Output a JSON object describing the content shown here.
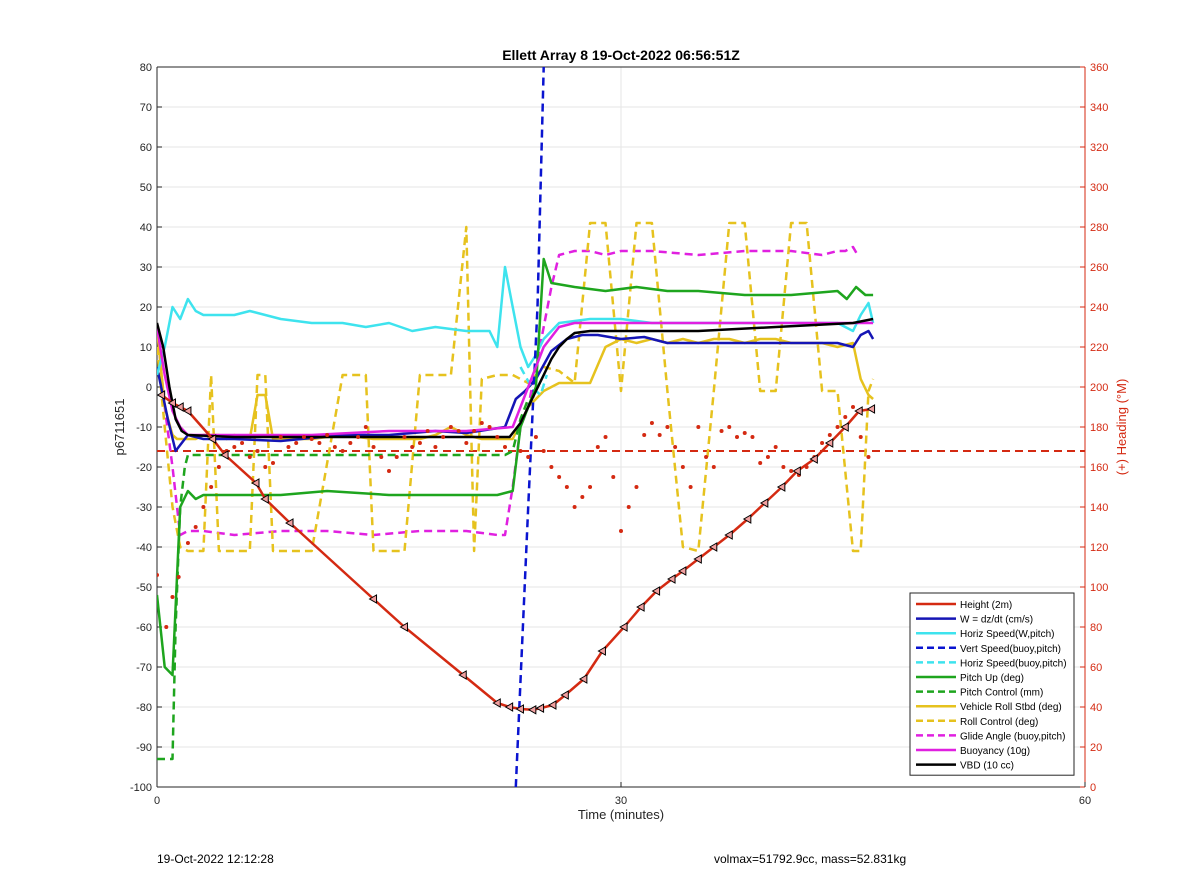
{
  "chart_data": {
    "type": "line",
    "title": "Ellett Array 8 19-Oct-2022 06:56:51Z",
    "xlabel": "Time (minutes)",
    "ylabel": "p6711651",
    "ylabel_right": "(+) Heading (°M)",
    "xlim": [
      0,
      60
    ],
    "ylim": [
      -100,
      80
    ],
    "ylim_right": [
      0,
      360
    ],
    "xticks": [
      "0",
      "30",
      "60"
    ],
    "yticks": [
      "80",
      "70",
      "60",
      "50",
      "40",
      "30",
      "20",
      "10",
      "0",
      "-10",
      "-20",
      "-30",
      "-40",
      "-50",
      "-60",
      "-70",
      "-80",
      "-90",
      "-100"
    ],
    "yticks_right": [
      "360",
      "340",
      "320",
      "300",
      "280",
      "260",
      "240",
      "220",
      "200",
      "180",
      "160",
      "140",
      "120",
      "100",
      "80",
      "60",
      "40",
      "20",
      "0"
    ],
    "grid": true,
    "legend_position": "bottom-right",
    "colors": {
      "height": "#d42a12",
      "w": "#1515b5",
      "horiz_w": "#3ee3ee",
      "vert_buoy": "#0a14d0",
      "horiz_buoy": "#3ee3ee",
      "pitch_up": "#1ea51e",
      "pitch_control": "#1ea51e",
      "roll": "#e6c21e",
      "roll_control": "#e6c21e",
      "glide": "#e020e0",
      "buoyancy": "#e020e0",
      "vbd": "#000000",
      "heading": "#d42a12",
      "right_axis": "#d42a12"
    },
    "series": [
      {
        "name": "Height (2m)",
        "style": "solid",
        "color_key": "height",
        "markers": "triangle",
        "x": [
          0.3,
          1.0,
          1.5,
          2.0,
          3.6,
          4.4,
          6.4,
          7.0,
          8.6,
          14.0,
          16.0,
          19.8,
          22.0,
          22.8,
          23.5,
          24.3,
          24.8,
          25.6,
          26.4,
          27.6,
          28.8,
          30.2,
          31.3,
          32.3,
          33.3,
          34.0,
          35.0,
          36.0,
          37.0,
          38.2,
          39.3,
          40.4,
          41.4,
          42.5,
          43.5,
          44.5,
          45.4,
          46.2
        ],
        "y": [
          -2,
          -4,
          -5,
          -6,
          -13,
          -17,
          -24,
          -28,
          -34,
          -53,
          -60,
          -72,
          -79,
          -80,
          -80.5,
          -80.7,
          -80.3,
          -79.5,
          -77,
          -73,
          -66,
          -60,
          -55,
          -51,
          -48,
          -46,
          -43,
          -40,
          -37,
          -33,
          -29,
          -25,
          -21,
          -18,
          -14,
          -10,
          -6,
          -5.5
        ]
      },
      {
        "name": "W = dz/dt (cm/s)",
        "style": "solid",
        "color_key": "w",
        "x": [
          0,
          0.7,
          1.2,
          2.0,
          3.0,
          5.0,
          8.0,
          12.0,
          15.0,
          18.0,
          20.0,
          22.5,
          23.2,
          23.8,
          24.5,
          25.5,
          26.5,
          27.5,
          28.5,
          30.0,
          31.5,
          33.0,
          35.0,
          38.0,
          40.0,
          42.0,
          44.0,
          45.0,
          45.5,
          46.0,
          46.3
        ],
        "y": [
          5,
          -8,
          -16,
          -12,
          -13,
          -13,
          -13.5,
          -12,
          -12,
          -11,
          -11.5,
          -10,
          -3,
          -1,
          2,
          9,
          12,
          13,
          13,
          12,
          12.5,
          11,
          11,
          11,
          11,
          11,
          11,
          10,
          13,
          14,
          12
        ]
      },
      {
        "name": "Horiz Speed(W,pitch)",
        "style": "solid",
        "color_key": "horiz_w",
        "x": [
          0,
          0.5,
          1.0,
          1.5,
          2.0,
          2.5,
          3.0,
          4.0,
          5.0,
          6.0,
          8.0,
          10.0,
          12.0,
          13.5,
          15.0,
          16.5,
          18.0,
          20.0,
          21.5,
          22.0,
          22.5,
          23.0,
          23.5,
          24.0,
          24.5,
          25.0,
          26.0,
          28.0,
          30.0,
          32.0,
          35.0,
          38.0,
          41.0,
          44.0,
          45.0,
          45.5,
          46.0,
          46.3
        ],
        "y": [
          3,
          10,
          20,
          17,
          22,
          19,
          18,
          18,
          18,
          19,
          17,
          16,
          16,
          15,
          16,
          14,
          15,
          14,
          14,
          10,
          30,
          20,
          10,
          5,
          8,
          12,
          16,
          17,
          17,
          16,
          16,
          16,
          16,
          16,
          14,
          18,
          21,
          16
        ]
      },
      {
        "name": "Vert Speed(buoy,pitch)",
        "style": "dashed",
        "color_key": "vert_buoy",
        "x": [
          23.2,
          24.0,
          24.6,
          25.0
        ],
        "y": [
          -100,
          -30,
          20,
          80
        ]
      },
      {
        "name": "Horiz Speed(buoy,pitch)",
        "style": "dashed",
        "color_key": "horiz_buoy",
        "x": [
          23.5,
          24.2,
          24.8,
          25.2
        ],
        "y": [
          5,
          0,
          -2,
          3
        ]
      },
      {
        "name": "Pitch Up (deg)",
        "style": "solid",
        "color_key": "pitch_up",
        "x": [
          0,
          0.5,
          1.0,
          1.5,
          2.0,
          2.5,
          3.0,
          5.0,
          8.0,
          11.0,
          15.0,
          18.0,
          20.0,
          22.0,
          23.0,
          23.5,
          24.0,
          24.5,
          25.0,
          25.5,
          27.0,
          29.0,
          31.0,
          33.0,
          35.0,
          38.0,
          41.0,
          44.0,
          44.6,
          45.2,
          45.8,
          46.3
        ],
        "y": [
          -52,
          -70,
          -72,
          -30,
          -26,
          -28,
          -27,
          -27,
          -27,
          -26,
          -27,
          -27,
          -27,
          -27,
          -26,
          -10,
          -5,
          0,
          32,
          26,
          25,
          24,
          25,
          24,
          24,
          23,
          23,
          24,
          22,
          25,
          23,
          23
        ]
      },
      {
        "name": "Pitch Control (mm)",
        "style": "dashed",
        "color_key": "pitch_control",
        "x": [
          0,
          1.0,
          1.2,
          1.5,
          1.8,
          2.0,
          5.0,
          10.0,
          15.0,
          20.0,
          22.5,
          23.0,
          23.5,
          24.0
        ],
        "y": [
          -93,
          -93,
          -60,
          -30,
          -20,
          -17,
          -17,
          -17,
          -17,
          -17,
          -17,
          -16,
          -8,
          -3
        ]
      },
      {
        "name": "Vehicle Roll Stbd (deg)",
        "style": "solid",
        "color_key": "roll",
        "x": [
          0,
          0.5,
          1.0,
          1.3,
          2.0,
          2.5,
          3.0,
          3.5,
          4.0,
          4.5,
          5.0,
          6.0,
          6.5,
          7.0,
          7.5,
          8.0,
          8.5,
          9.0,
          10.0,
          12.0,
          14.0,
          15.0,
          16.0,
          17.0,
          18.0,
          19.0,
          20.0,
          21.0,
          22.0,
          23.0,
          24.0,
          25.0,
          26.0,
          27.0,
          28.0,
          29.0,
          30.0,
          31.0,
          32.0,
          33.0,
          34.0,
          35.0,
          36.0,
          37.0,
          38.0,
          39.0,
          40.0,
          41.0,
          42.0,
          43.0,
          44.0,
          45.0,
          45.5,
          46.0,
          46.3
        ],
        "y": [
          15,
          -5,
          -12,
          -13,
          -13,
          -13,
          -12,
          -12,
          -12,
          -13,
          -12,
          -13,
          -2,
          -2,
          -13,
          -13,
          -13,
          -13,
          -13,
          -12,
          -13,
          -13,
          -13,
          -13,
          -12,
          -10,
          -12,
          -13,
          -13,
          -13,
          -5,
          -1,
          1,
          1,
          1,
          10,
          12,
          11,
          12,
          11,
          12,
          11,
          12,
          12,
          11,
          12,
          12,
          11,
          11,
          11,
          10,
          11,
          2,
          -2,
          -3
        ]
      },
      {
        "name": "Roll Control (deg)",
        "style": "dashed",
        "color_key": "roll_control",
        "x": [
          0,
          0.5,
          1.0,
          1.5,
          2.0,
          3.0,
          3.5,
          4.0,
          4.5,
          5.0,
          6.0,
          6.5,
          7.0,
          7.5,
          8.0,
          10.0,
          12.0,
          13.5,
          14.0,
          15.0,
          16.0,
          17.0,
          18.0,
          19.0,
          20.0,
          20.5,
          21.0,
          22.0,
          23.0,
          24.0,
          25.0,
          26.0,
          27.0,
          28.0,
          29.0,
          30.0,
          31.0,
          32.0,
          33.0,
          34.0,
          35.0,
          36.0,
          37.0,
          38.0,
          39.0,
          40.0,
          41.0,
          42.0,
          43.0,
          44.0,
          45.0,
          45.5,
          46.0,
          46.3
        ],
        "y": [
          10,
          -10,
          -30,
          -40,
          -41,
          -41,
          3,
          -41,
          -41,
          -41,
          -41,
          3,
          3,
          -41,
          -41,
          -41,
          3,
          3,
          -41,
          -41,
          -41,
          3,
          3,
          3,
          40,
          -41,
          2,
          3,
          3,
          1,
          5,
          4,
          1,
          41,
          41,
          -1,
          41,
          41,
          -1,
          -40,
          -41,
          -1,
          41,
          41,
          -1,
          -1,
          41,
          41,
          -1,
          -1,
          -41,
          -41,
          -1,
          2
        ]
      },
      {
        "name": "Glide Angle (buoy,pitch)",
        "style": "dashed",
        "color_key": "glide",
        "x": [
          0,
          0.5,
          1.0,
          1.5,
          2.0,
          3.0,
          5.0,
          8.0,
          11.0,
          14.0,
          17.0,
          20.0,
          22.0,
          22.5,
          23.0,
          23.5,
          24.0,
          24.5,
          25.0,
          25.5,
          26.0,
          27.0,
          28.0,
          29.0,
          30.0,
          32.0,
          35.0,
          38.0,
          41.0,
          43.0,
          44.0,
          44.5,
          45.0,
          45.3
        ],
        "y": [
          15,
          -5,
          -20,
          -37,
          -36,
          -36,
          -37,
          -36,
          -36,
          -37,
          -36,
          -36,
          -37,
          -37,
          -25,
          -10,
          -5,
          5,
          15,
          25,
          33,
          34,
          34,
          33,
          34,
          34,
          33,
          34,
          34,
          33,
          34,
          34,
          35,
          33
        ]
      },
      {
        "name": "Buoyancy (10g)",
        "style": "solid",
        "color_key": "buoyancy",
        "x": [
          0,
          0.5,
          1.0,
          1.5,
          2.0,
          5.0,
          10.0,
          15.0,
          20.0,
          23.0,
          23.5,
          24.0,
          24.5,
          25.0,
          26.0,
          27.0,
          28.0,
          30.0,
          35.0,
          40.0,
          45.0,
          46.3
        ],
        "y": [
          15,
          3,
          -6,
          -10,
          -12,
          -12,
          -12,
          -11,
          -11,
          -10,
          -5,
          0,
          5,
          10,
          15,
          16,
          16,
          16,
          16,
          16,
          16,
          16
        ]
      },
      {
        "name": "VBD (10 cc)",
        "style": "solid",
        "color_key": "vbd",
        "x": [
          0,
          0.4,
          0.8,
          1.2,
          1.6,
          2.0,
          5.0,
          10.0,
          15.0,
          20.0,
          22.8,
          23.5,
          24.0,
          24.5,
          25.0,
          25.5,
          26.0,
          26.5,
          27.0,
          28.0,
          30.0,
          33.0,
          35.0,
          40.0,
          45.0,
          46.3
        ],
        "y": [
          16,
          10,
          0,
          -8,
          -11,
          -12,
          -12.5,
          -12.5,
          -12.5,
          -12.5,
          -12.5,
          -9,
          -5,
          -1,
          3,
          7,
          10,
          12,
          13.5,
          14,
          14,
          14,
          14,
          15,
          16,
          17
        ]
      }
    ],
    "heading_points": {
      "x": [
        0.0,
        0.6,
        1.0,
        1.4,
        2.0,
        2.5,
        3.0,
        3.5,
        4.0,
        4.5,
        5.0,
        5.5,
        6.0,
        6.5,
        7.0,
        7.5,
        8.0,
        8.5,
        9.0,
        9.5,
        10.0,
        10.5,
        11.0,
        11.5,
        12.0,
        12.5,
        13.0,
        13.5,
        14.0,
        14.5,
        15.0,
        15.5,
        16.0,
        16.5,
        17.0,
        17.5,
        18.0,
        18.5,
        19.0,
        19.5,
        20.0,
        20.5,
        21.0,
        21.5,
        22.0,
        22.5,
        23.5,
        24.0,
        24.5,
        25.0,
        25.5,
        26.0,
        26.5,
        27.0,
        27.5,
        28.0,
        28.5,
        29.0,
        29.5,
        30.0,
        30.5,
        31.0,
        31.5,
        32.0,
        32.5,
        33.0,
        33.5,
        34.0,
        34.5,
        35.0,
        35.5,
        36.0,
        36.5,
        37.0,
        37.5,
        38.0,
        38.5,
        39.0,
        39.5,
        40.0,
        40.5,
        41.0,
        41.5,
        42.0,
        42.5,
        43.0,
        43.5,
        44.0,
        44.5,
        45.0,
        45.5,
        46.0
      ],
      "y": [
        106,
        80,
        95,
        105,
        122,
        130,
        140,
        150,
        160,
        168,
        170,
        172,
        165,
        168,
        160,
        162,
        175,
        170,
        172,
        175,
        174,
        172,
        176,
        170,
        168,
        172,
        175,
        180,
        170,
        165,
        158,
        165,
        175,
        170,
        172,
        178,
        170,
        175,
        180,
        178,
        172,
        178,
        182,
        180,
        175,
        170,
        168,
        165,
        175,
        168,
        160,
        155,
        150,
        140,
        145,
        150,
        170,
        175,
        155,
        128,
        140,
        150,
        176,
        182,
        176,
        180,
        170,
        160,
        150,
        180,
        165,
        160,
        178,
        180,
        175,
        177,
        175,
        162,
        165,
        170,
        160,
        158,
        156,
        160,
        165,
        172,
        176,
        180,
        185,
        190,
        175,
        165
      ]
    },
    "heading_reference": 168
  },
  "footer": {
    "left_text": "19-Oct-2022 12:12:28",
    "right_text": "volmax=51792.9cc, mass=52.831kg"
  }
}
